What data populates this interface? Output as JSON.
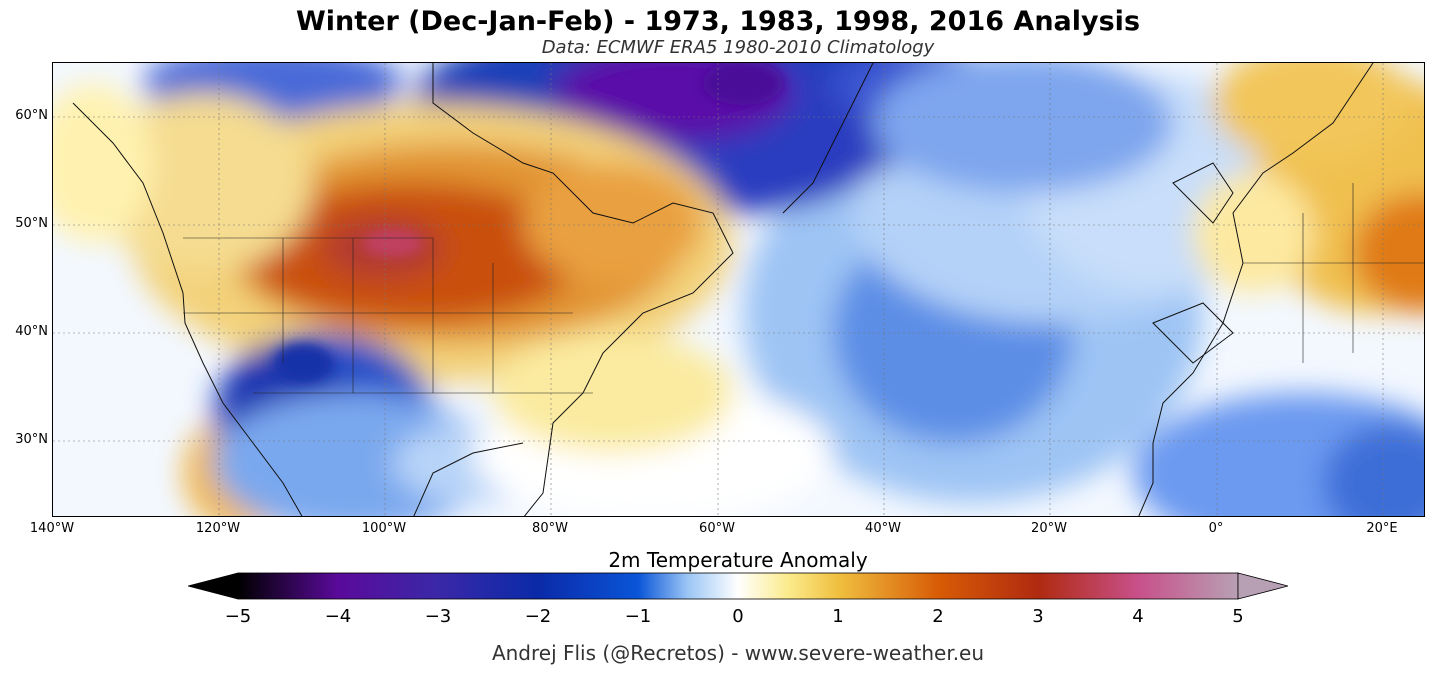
{
  "title": "Winter (Dec-Jan-Feb) - 1973, 1983, 1998, 2016 Analysis",
  "subtitle": "Data: ECMWF ERA5   1980-2010 Climatology",
  "colorbar_title": "2m Temperature Anomaly",
  "credit": "Andrej Flis (@Recretos) - www.severe-weather.eu",
  "longitude_ticks": [
    "140°W",
    "120°W",
    "100°W",
    "80°W",
    "60°W",
    "40°W",
    "20°W",
    "0°",
    "20°E"
  ],
  "latitude_ticks": [
    "60°N",
    "50°N",
    "40°N",
    "30°N"
  ],
  "colorbar_ticks": [
    "−5",
    "−4",
    "−3",
    "−2",
    "−1",
    "0",
    "1",
    "2",
    "3",
    "4",
    "5"
  ],
  "colorbar_range": [
    -5,
    5
  ],
  "colorbar_colors": {
    "-5": "#000000",
    "-4": "#5a0a9a",
    "-3": "#3a28a8",
    "-2": "#0a2aa8",
    "-1": "#0a55d8",
    "-0.5": "#9cc6f5",
    "0": "#ffffff",
    "0.5": "#fbeb8c",
    "1": "#f0c040",
    "2": "#d85c06",
    "3": "#b02a10",
    "4": "#c8508a",
    "5": "#b8a0b4"
  }
}
